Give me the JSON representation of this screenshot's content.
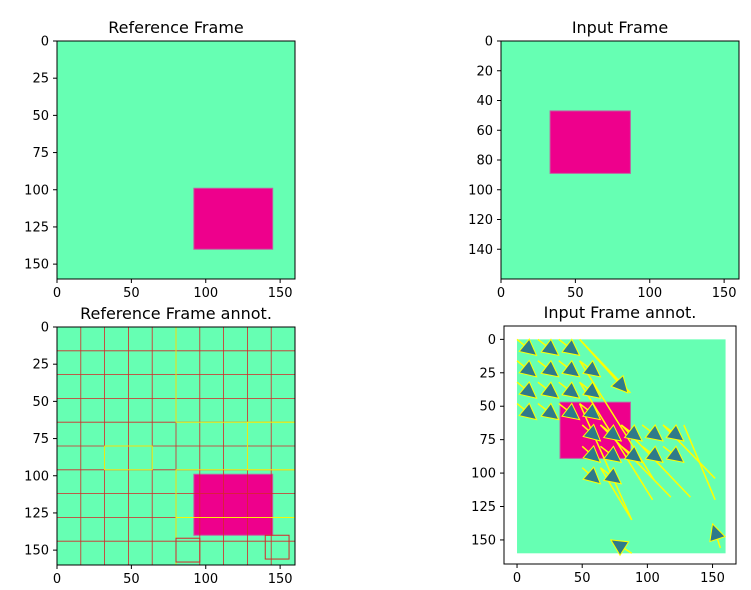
{
  "colors": {
    "background": "#66ffb3",
    "rectangle": "#ee008c",
    "arrow_line": "#ffff00",
    "arrow_head": "#2e7a8a",
    "grid_red": "#d62728",
    "grid_yellow": "#ffff00"
  },
  "chart_data": [
    {
      "type": "image",
      "title": "Reference Frame",
      "xlim": [
        0,
        160
      ],
      "ylim": [
        160,
        0
      ],
      "xticks": [
        "0",
        "50",
        "100",
        "150"
      ],
      "yticks": [
        "0",
        "25",
        "50",
        "75",
        "100",
        "125",
        "150"
      ],
      "rectangle": {
        "x": [
          92,
          145
        ],
        "y": [
          99,
          140
        ]
      }
    },
    {
      "type": "image",
      "title": "Input Frame",
      "xlim": [
        0,
        160
      ],
      "ylim": [
        160,
        0
      ],
      "xticks": [
        "0",
        "50",
        "100",
        "150"
      ],
      "yticks": [
        "0",
        "20",
        "40",
        "60",
        "80",
        "100",
        "120",
        "140"
      ],
      "rectangle": {
        "x": [
          33,
          87
        ],
        "y": [
          47,
          89
        ]
      }
    },
    {
      "type": "image",
      "title": "Reference Frame annot.",
      "xlim": [
        0,
        160
      ],
      "ylim": [
        160,
        0
      ],
      "xticks": [
        "0",
        "50",
        "100",
        "150"
      ],
      "yticks": [
        "0",
        "25",
        "50",
        "75",
        "100",
        "125",
        "150"
      ],
      "rectangle": {
        "x": [
          92,
          145
        ],
        "y": [
          99,
          140
        ]
      },
      "grid_x": [
        16,
        32,
        48,
        64,
        80,
        96,
        112,
        128,
        144
      ],
      "grid_y": [
        16,
        32,
        48,
        64,
        80,
        96,
        112,
        128,
        144
      ]
    },
    {
      "type": "quiver",
      "title": "Input Frame annot.",
      "xlim": [
        -10,
        168
      ],
      "ylim": [
        168,
        -10
      ],
      "xticks": [
        "0",
        "50",
        "100",
        "150"
      ],
      "yticks": [
        "0",
        "25",
        "50",
        "75",
        "100",
        "125",
        "150"
      ],
      "rectangle": {
        "x": [
          33,
          87
        ],
        "y": [
          47,
          89
        ]
      },
      "arrows": [
        [
          0,
          0,
          15,
          12
        ],
        [
          16,
          0,
          32,
          12
        ],
        [
          32,
          0,
          48,
          12
        ],
        [
          48,
          0,
          85,
          40
        ],
        [
          0,
          16,
          15,
          28
        ],
        [
          16,
          16,
          32,
          28
        ],
        [
          32,
          16,
          48,
          28
        ],
        [
          48,
          16,
          64,
          28
        ],
        [
          0,
          32,
          15,
          44
        ],
        [
          16,
          32,
          32,
          44
        ],
        [
          32,
          32,
          48,
          44
        ],
        [
          48,
          32,
          64,
          44
        ],
        [
          0,
          48,
          15,
          60
        ],
        [
          16,
          48,
          32,
          60
        ],
        [
          32,
          48,
          48,
          60
        ],
        [
          48,
          48,
          64,
          60
        ],
        [
          50,
          64,
          64,
          76
        ],
        [
          64,
          64,
          80,
          76
        ],
        [
          80,
          64,
          96,
          76
        ],
        [
          96,
          64,
          112,
          76
        ],
        [
          112,
          64,
          128,
          76
        ],
        [
          50,
          80,
          64,
          92
        ],
        [
          64,
          80,
          80,
          92
        ],
        [
          80,
          80,
          96,
          92
        ],
        [
          96,
          80,
          112,
          92
        ],
        [
          112,
          80,
          128,
          92
        ],
        [
          50,
          96,
          64,
          108
        ],
        [
          64,
          96,
          80,
          108
        ],
        [
          88,
          160,
          72,
          150
        ],
        [
          156,
          156,
          150,
          138
        ]
      ],
      "long_tails": [
        [
          48,
          0,
          87,
          40
        ],
        [
          48,
          16,
          105,
          105
        ],
        [
          48,
          32,
          104,
          120
        ],
        [
          48,
          48,
          88,
          135
        ],
        [
          64,
          64,
          118,
          118
        ],
        [
          80,
          64,
          133,
          118
        ],
        [
          112,
          64,
          152,
          104
        ],
        [
          128,
          64,
          152,
          120
        ],
        [
          64,
          96,
          88,
          135
        ]
      ]
    }
  ]
}
